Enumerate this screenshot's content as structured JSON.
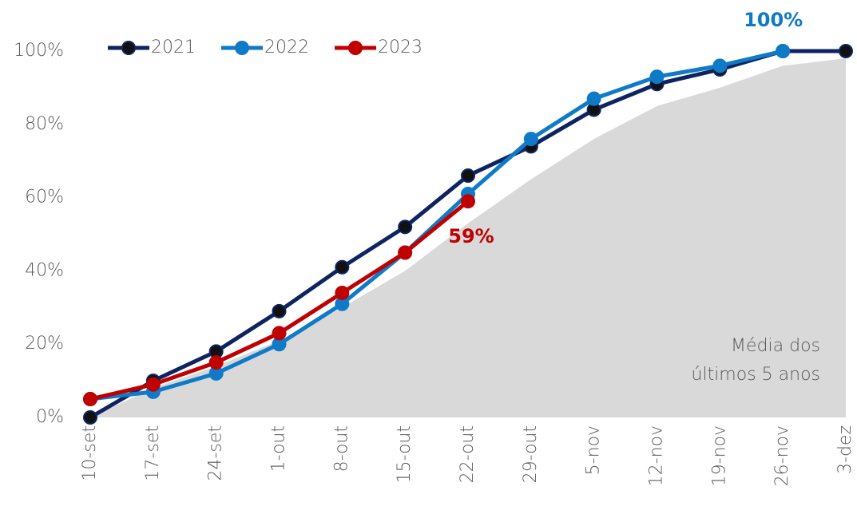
{
  "chart_data": {
    "type": "line",
    "categories": [
      "10-set",
      "17-set",
      "24-set",
      "1-out",
      "8-out",
      "15-out",
      "22-out",
      "29-out",
      "5-nov",
      "12-nov",
      "19-nov",
      "26-nov",
      "3-dez"
    ],
    "ylim": [
      0,
      100
    ],
    "yticks": [
      {
        "value": 0,
        "label": "0%"
      },
      {
        "value": 20,
        "label": "20%"
      },
      {
        "value": 40,
        "label": "40%"
      },
      {
        "value": 60,
        "label": "60%"
      },
      {
        "value": 80,
        "label": "80%"
      },
      {
        "value": 100,
        "label": "100%"
      }
    ],
    "area": {
      "values": [
        0,
        8,
        14,
        21,
        30,
        40,
        53,
        65,
        76,
        85,
        90,
        96,
        98
      ],
      "color": "#d9d9d9",
      "label_lines": [
        "Média dos",
        "últimos 5 anos"
      ]
    },
    "series": [
      {
        "name": "2021",
        "color": "#0d2461",
        "values": [
          0,
          10,
          18,
          29,
          41,
          52,
          66,
          74,
          84,
          91,
          95,
          100,
          100
        ]
      },
      {
        "name": "2022",
        "color": "#0f7ac7",
        "values": [
          5,
          7,
          12,
          20,
          31,
          45,
          61,
          76,
          87,
          93,
          96,
          100,
          null
        ],
        "value_labels": [
          null,
          null,
          null,
          null,
          null,
          null,
          null,
          null,
          null,
          null,
          null,
          "100%",
          null
        ]
      },
      {
        "name": "2023",
        "color": "#c00000",
        "values": [
          5,
          9,
          15,
          23,
          34,
          45,
          59,
          null,
          null,
          null,
          null,
          null,
          null
        ],
        "value_labels": [
          null,
          null,
          null,
          null,
          null,
          null,
          "59%",
          null,
          null,
          null,
          null,
          null,
          null
        ]
      }
    ],
    "legend": "top-left",
    "grid": false
  }
}
